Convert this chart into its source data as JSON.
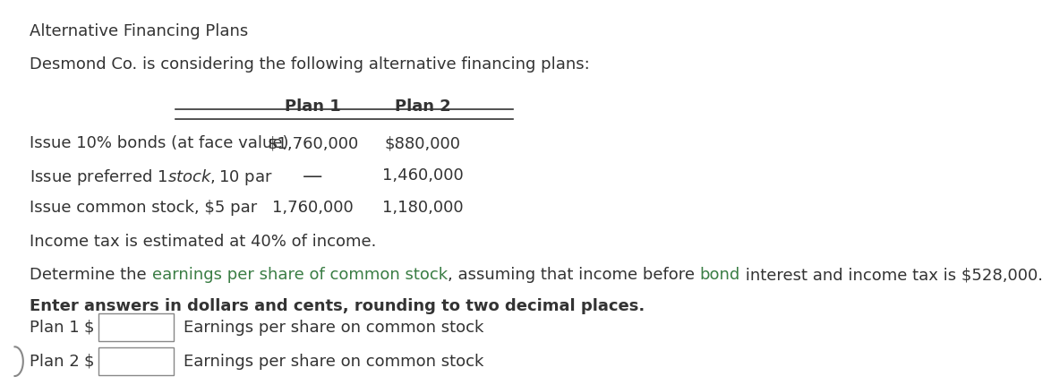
{
  "title": "Alternative Financing Plans",
  "subtitle": "Desmond Co. is considering the following alternative financing plans:",
  "table_headers": [
    "",
    "Plan 1",
    "Plan 2"
  ],
  "table_rows": [
    [
      "Issue 10% bonds (at face value)",
      "$1,760,000",
      "$880,000"
    ],
    [
      "Issue preferred $1 stock, $10 par",
      "—",
      "1,460,000"
    ],
    [
      "Issue common stock, $5 par",
      "1,760,000",
      "1,180,000"
    ]
  ],
  "income_tax_note": "Income tax is estimated at 40% of income.",
  "determine_parts": [
    {
      "text": "Determine the ",
      "color": "#333333",
      "bold": false
    },
    {
      "text": "earnings per share of common stock",
      "color": "#3a7d44",
      "bold": false
    },
    {
      "text": ", assuming that income before ",
      "color": "#333333",
      "bold": false
    },
    {
      "text": "bond",
      "color": "#3a7d44",
      "bold": false
    },
    {
      "text": " interest and income tax is $528,000.",
      "color": "#333333",
      "bold": false
    }
  ],
  "bold_line": "Enter answers in dollars and cents, rounding to two decimal places.",
  "plan1_label": "Plan 1",
  "plan2_label": "Plan 2",
  "dollar_sign": "$",
  "earnings_label": "Earnings per share on common stock",
  "green_color": "#3a7d44",
  "text_color": "#333333",
  "background_color": "#ffffff",
  "font_size": 13.0
}
